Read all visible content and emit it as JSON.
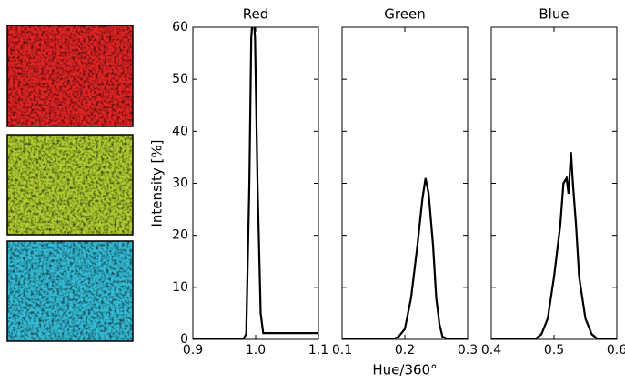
{
  "chart_data": [
    {
      "type": "line",
      "title": "Red",
      "ylabel": "Intensity [%]",
      "color": "#000000",
      "x": [
        0.9,
        0.98,
        0.985,
        0.99,
        0.993,
        0.996,
        0.999,
        1.003,
        1.008,
        1.012,
        1.1
      ],
      "values": [
        0,
        0,
        1,
        30,
        58,
        63,
        58,
        30,
        5,
        1.2,
        1.2
      ],
      "xlim": [
        0.9,
        1.1
      ],
      "xticks": [
        0.9,
        {
          "value": 1,
          "label": "1.0"
        },
        1.1
      ],
      "ylim": [
        0,
        60
      ],
      "yticks": [
        0,
        10,
        20,
        30,
        40,
        50,
        60
      ]
    },
    {
      "type": "line",
      "title": "Green",
      "xlabel": "Hue/360°",
      "color": "#000000",
      "x": [
        0.1,
        0.18,
        0.19,
        0.2,
        0.21,
        0.22,
        0.228,
        0.233,
        0.238,
        0.245,
        0.25,
        0.255,
        0.26,
        0.27,
        0.3
      ],
      "values": [
        0,
        0,
        0.5,
        2,
        8,
        18,
        27,
        31,
        28,
        18,
        8,
        3,
        0.5,
        0,
        0
      ],
      "xlim": [
        0.1,
        0.3
      ],
      "xticks": [
        0.1,
        0.2,
        0.3
      ],
      "ylim": [
        0,
        60
      ]
    },
    {
      "type": "line",
      "title": "Blue",
      "color": "#000000",
      "x": [
        0.4,
        0.47,
        0.48,
        0.49,
        0.5,
        0.51,
        0.515,
        0.52,
        0.523,
        0.527,
        0.53,
        0.535,
        0.54,
        0.55,
        0.56,
        0.57,
        0.6
      ],
      "values": [
        0,
        0,
        1,
        4,
        12,
        22,
        30,
        31,
        28,
        36,
        30,
        22,
        12,
        4,
        1,
        0,
        0
      ],
      "xlim": [
        0.4,
        0.6
      ],
      "xticks": [
        0.4,
        0.5,
        0.6
      ],
      "ylim": [
        0,
        60
      ]
    }
  ]
}
